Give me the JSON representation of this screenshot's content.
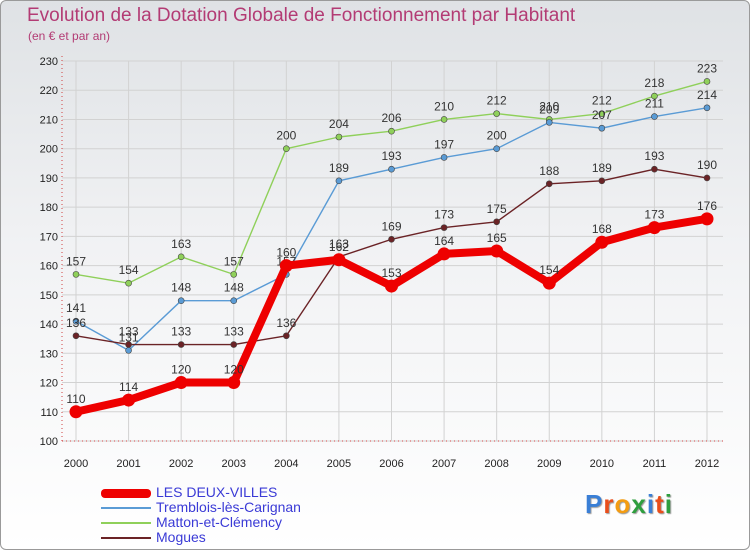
{
  "title": "Evolution de la Dotation Globale de Fonctionnement par Habitant",
  "subtitle": "(en € et par an)",
  "logo_text": "Proxiti",
  "logo_letter_colors": [
    "#3a7fd6",
    "#e94e1b",
    "#f39c12",
    "#2e9e3e",
    "#3a7fd6",
    "#e94e1b",
    "#2e9e3e"
  ],
  "chart_data": {
    "type": "line",
    "title": "Evolution de la Dotation Globale de Fonctionnement par Habitant",
    "ylabel": "(en € et par an)",
    "xlabel": "",
    "x": [
      "2000",
      "2001",
      "2002",
      "2003",
      "2004",
      "2005",
      "2006",
      "2007",
      "2008",
      "2009",
      "2010",
      "2011",
      "2012"
    ],
    "ylim": [
      100,
      230
    ],
    "yticks": [
      "100",
      "110",
      "120",
      "130",
      "140",
      "150",
      "160",
      "170",
      "180",
      "190",
      "200",
      "210",
      "220",
      "230"
    ],
    "grid": true,
    "legend_position": "bottom-left",
    "series": [
      {
        "name": "Matton-et-Clémency",
        "color": "#8fd05a",
        "values": [
          157,
          154,
          163,
          157,
          200,
          204,
          206,
          210,
          212,
          210,
          212,
          218,
          223
        ],
        "labels": [
          "157",
          "154",
          "163",
          "157",
          "200",
          "204",
          "206",
          "210",
          "212",
          "210",
          "212",
          "218",
          "223"
        ]
      },
      {
        "name": "Tremblois-lès-Carignan",
        "color": "#5a9bd5",
        "values": [
          141,
          131,
          148,
          148,
          157,
          189,
          193,
          197,
          200,
          209,
          207,
          211,
          214
        ],
        "labels": [
          "141",
          "131",
          "148",
          "148",
          "157",
          "189",
          "193",
          "197",
          "200",
          "209",
          "207",
          "211",
          "214"
        ]
      },
      {
        "name": "Mogues",
        "color": "#6b2326",
        "values": [
          136,
          133,
          133,
          133,
          136,
          163,
          169,
          173,
          175,
          188,
          189,
          193,
          190
        ],
        "labels": [
          "136",
          "133",
          "133",
          "133",
          "136",
          "163",
          "169",
          "173",
          "175",
          "188",
          "189",
          "193",
          "190"
        ]
      },
      {
        "name": "LES DEUX-VILLES",
        "color": "#ee0000",
        "values": [
          110,
          114,
          120,
          120,
          160,
          162,
          153,
          164,
          165,
          154,
          168,
          173,
          176
        ],
        "labels": [
          "110",
          "114",
          "120",
          "120",
          "160",
          "162",
          "153",
          "164",
          "165",
          "154",
          "168",
          "173",
          "176"
        ]
      }
    ]
  },
  "legend": [
    {
      "label": "LES DEUX-VILLES",
      "color": "#ee0000"
    },
    {
      "label": "Tremblois-lès-Carignan",
      "color": "#5a9bd5"
    },
    {
      "label": "Matton-et-Clémency",
      "color": "#8fd05a"
    },
    {
      "label": "Mogues",
      "color": "#6b2326"
    }
  ]
}
